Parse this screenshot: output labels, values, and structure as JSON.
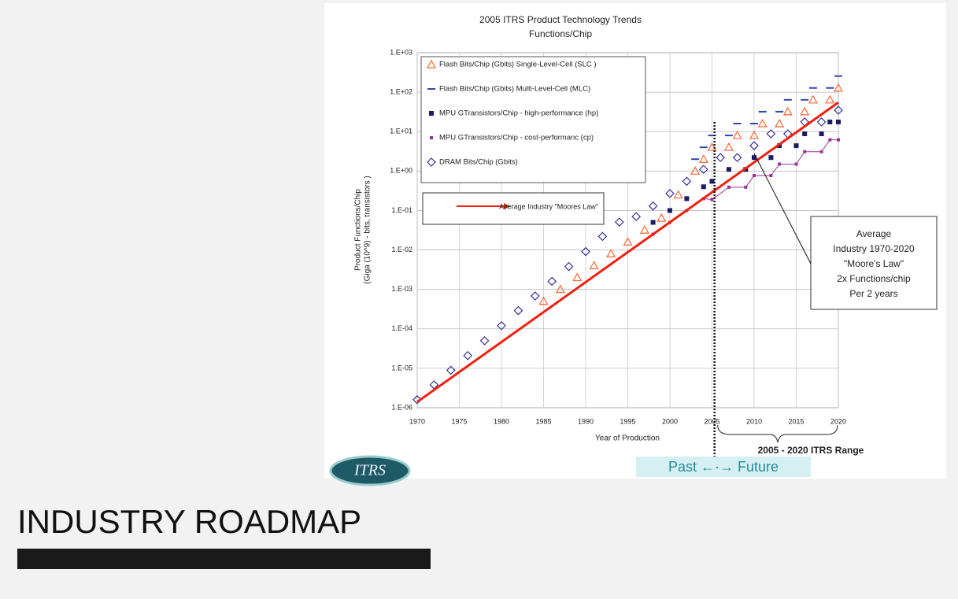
{
  "heading": "INDUSTRY ROADMAP",
  "logo": "ITRS",
  "chart_data": {
    "type": "scatter",
    "title": "2005 ITRS Product Technology Trends",
    "subtitle": "Functions/Chip",
    "xlabel": "Year of Production",
    "ylabel": [
      "Product Functions/Chip",
      "(Giga (10^9) - bits, transistors )"
    ],
    "xlim": [
      1970,
      2020
    ],
    "xticks": [
      1970,
      1975,
      1980,
      1985,
      1990,
      1995,
      2000,
      2005,
      2010,
      2015,
      2020
    ],
    "ylim": [
      1e-06,
      1000
    ],
    "log_y": true,
    "grid": true,
    "yticks": [
      {
        "value": 1e-06,
        "label": "1.E-06"
      },
      {
        "value": 1e-05,
        "label": "1.E-05"
      },
      {
        "value": 0.0001,
        "label": "1.E-04"
      },
      {
        "value": 0.001,
        "label": "1.E-03"
      },
      {
        "value": 0.01,
        "label": "1.E-02"
      },
      {
        "value": 0.1,
        "label": "1.E-01"
      },
      {
        "value": 1,
        "label": "1.E+00"
      },
      {
        "value": 10,
        "label": "1.E+01"
      },
      {
        "value": 100,
        "label": "1.E+02"
      },
      {
        "value": 1000,
        "label": "1.E+03"
      }
    ],
    "series": [
      {
        "name": "Flash Bits/Chip (Gbits) Single-Level-Cell (SLC )",
        "color": "#ff6633",
        "marker": "triangle",
        "x": [
          1985,
          1987,
          1989,
          1991,
          1993,
          1995,
          1997,
          1999,
          2001,
          2003,
          2004,
          2005,
          2007,
          2008,
          2010,
          2011,
          2013,
          2014,
          2016,
          2017,
          2019,
          2020
        ],
        "values": [
          0.0005,
          0.001,
          0.002,
          0.004,
          0.008,
          0.016,
          0.032,
          0.064,
          0.25,
          1,
          2,
          4,
          4,
          8,
          8,
          16,
          16,
          32,
          32,
          64,
          64,
          128
        ]
      },
      {
        "name": "Flash Bits/Chip (Gbits) Multi-Level-Cell (MLC)",
        "color": "#3344aa",
        "marker": "dash",
        "x": [
          2003,
          2004,
          2005,
          2007,
          2008,
          2010,
          2011,
          2013,
          2014,
          2016,
          2017,
          2019,
          2020
        ],
        "values": [
          2,
          4,
          8,
          8,
          16,
          16,
          32,
          32,
          64,
          64,
          128,
          128,
          256
        ]
      },
      {
        "name": "MPU GTransistors/Chip - high-performance (hp)",
        "color": "#1a1a66",
        "marker": "square",
        "x": [
          1998,
          2000,
          2002,
          2004,
          2005,
          2007,
          2009,
          2010,
          2012,
          2013,
          2015,
          2016,
          2018,
          2019,
          2020
        ],
        "values": [
          0.05,
          0.1,
          0.2,
          0.4,
          0.55,
          1.1,
          1.1,
          2.2,
          2.2,
          4.4,
          4.4,
          8.8,
          8.8,
          17.6,
          17.6
        ]
      },
      {
        "name": "MPU GTransistors/Chip - cost-performanc (cp)",
        "color": "#993399",
        "marker": "smallsquare",
        "connect": true,
        "x": [
          1998,
          2000,
          2002,
          2004,
          2005,
          2007,
          2009,
          2010,
          2012,
          2013,
          2015,
          2016,
          2018,
          2019,
          2020
        ],
        "values": [
          0.025,
          0.05,
          0.1,
          0.2,
          0.19,
          0.39,
          0.39,
          0.77,
          0.77,
          1.5,
          1.5,
          3.1,
          3.1,
          6.2,
          6.2
        ]
      },
      {
        "name": "DRAM Bits/Chip (Gbits)",
        "color": "#333399",
        "marker": "diamond",
        "x": [
          1970,
          1972,
          1974,
          1976,
          1978,
          1980,
          1982,
          1984,
          1986,
          1988,
          1990,
          1992,
          1994,
          1996,
          1998,
          2000,
          2002,
          2004,
          2006,
          2008,
          2010,
          2012,
          2014,
          2016,
          2018,
          2020
        ],
        "values": [
          1.6e-06,
          3.8e-06,
          8.9e-06,
          2.1e-05,
          5e-05,
          0.00012,
          0.00029,
          0.00068,
          0.0016,
          0.0038,
          0.0091,
          0.022,
          0.051,
          0.07,
          0.13,
          0.27,
          0.55,
          1.1,
          2.2,
          2.2,
          4.4,
          8.8,
          8.8,
          17.6,
          17.6,
          35
        ]
      },
      {
        "name": "Average Industry \"Moores Law\"",
        "color": "#ee2211",
        "marker": "line",
        "x": [
          1970,
          2020
        ],
        "values": [
          1.4e-06,
          55
        ]
      }
    ],
    "divider_year": 2005.3,
    "callout": [
      "Average",
      "Industry 1970-2020",
      "\"Moore's Law\"",
      "2x Functions/chip",
      "Per 2 years"
    ],
    "range_label": "2005 - 2020 ITRS Range",
    "past_future": "Past ←·→ Future"
  }
}
